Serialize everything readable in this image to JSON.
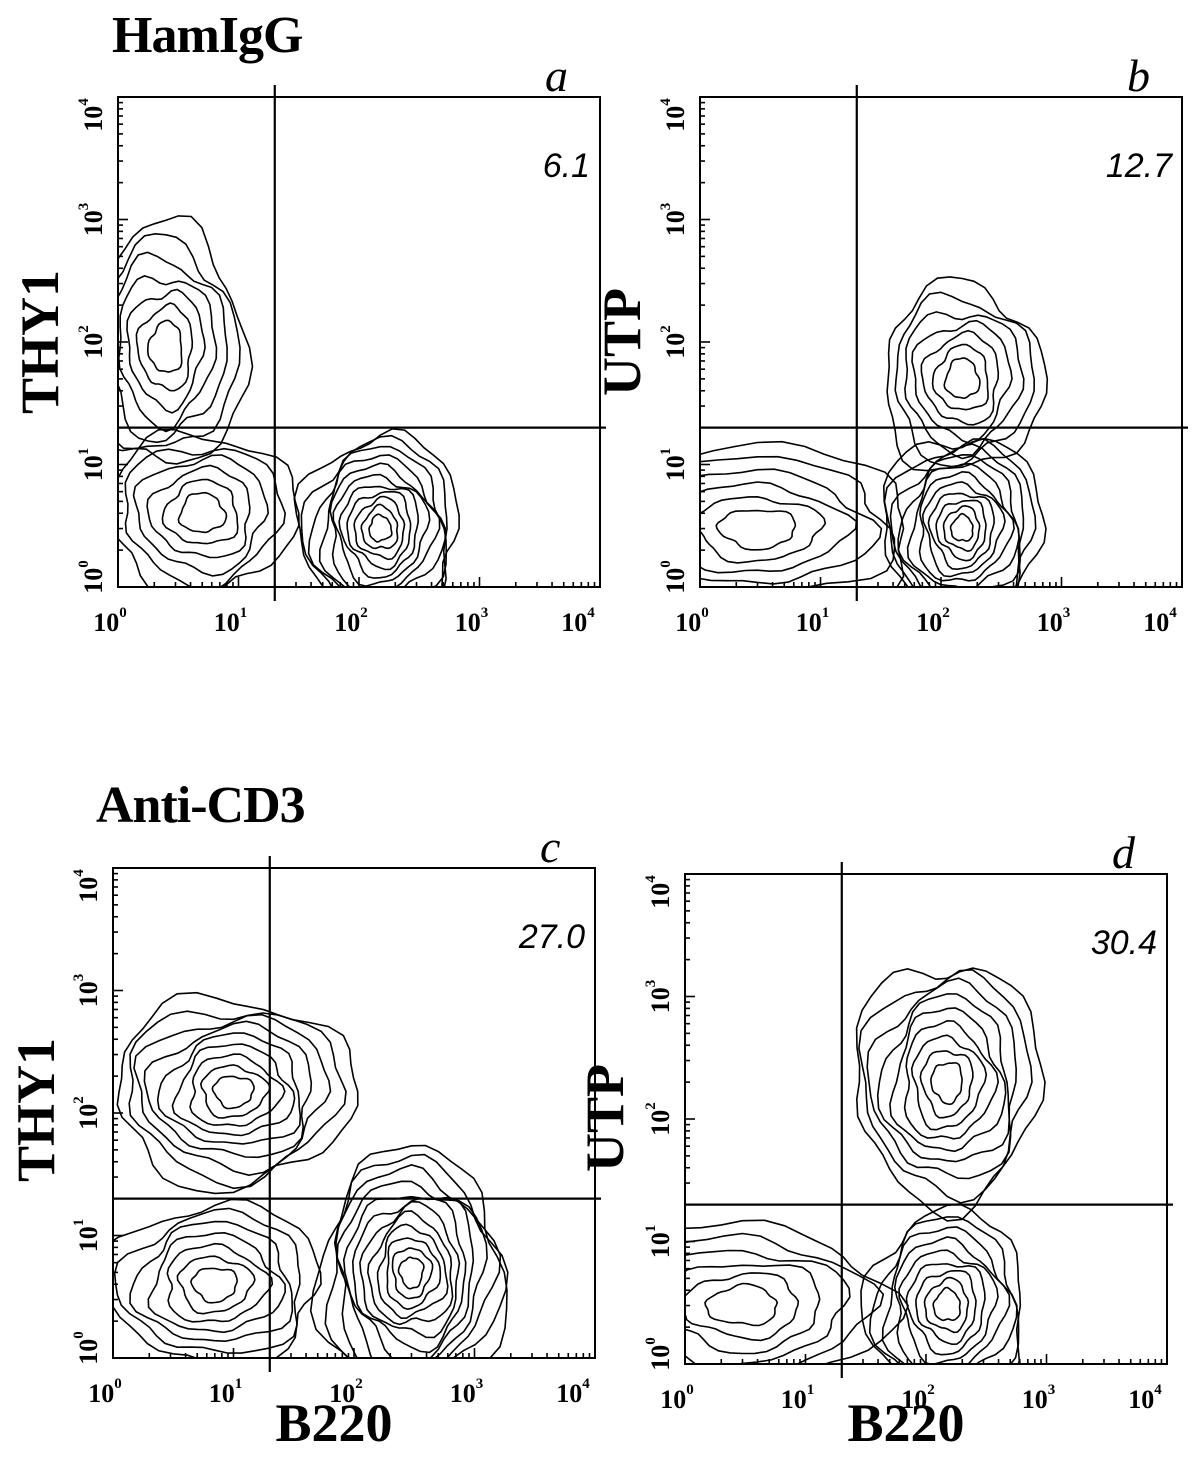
{
  "groups": [
    {
      "title": "HamIgG"
    },
    {
      "title": "Anti-CD3"
    }
  ],
  "axes": {
    "x_label": "B220",
    "thy_label": "THY1",
    "utp_label": "UTP",
    "ticks": [
      "10^0",
      "10^1",
      "10^2",
      "10^3",
      "10^4"
    ]
  },
  "chart_data": [
    {
      "type": "contour",
      "panel": "a",
      "group": "HamIgG",
      "xlabel": "B220",
      "ylabel": "THY1",
      "xscale": "log",
      "yscale": "log",
      "xlim": [
        1,
        10000
      ],
      "ylim": [
        1,
        10000
      ],
      "gate": {
        "x": 20,
        "y": 20
      },
      "annotation": "6.1",
      "populations": [
        {
          "center": [
            2.5,
            90
          ],
          "log_spread": [
            0.3,
            0.45
          ],
          "levels": 7
        },
        {
          "center": [
            5,
            4
          ],
          "log_spread": [
            0.35,
            0.3
          ],
          "levels": 6
        },
        {
          "center": [
            150,
            3
          ],
          "log_spread": [
            0.3,
            0.35
          ],
          "levels": 11
        }
      ]
    },
    {
      "type": "contour",
      "panel": "b",
      "group": "HamIgG",
      "xlabel": "B220",
      "ylabel": "UTP",
      "xscale": "log",
      "yscale": "log",
      "xlim": [
        1,
        10000
      ],
      "ylim": [
        1,
        10000
      ],
      "gate": {
        "x": 20,
        "y": 20
      },
      "annotation": "12.7",
      "populations": [
        {
          "center": [
            150,
            50
          ],
          "log_spread": [
            0.3,
            0.35
          ],
          "levels": 7
        },
        {
          "center": [
            150,
            3
          ],
          "log_spread": [
            0.3,
            0.35
          ],
          "levels": 11
        },
        {
          "center": [
            3,
            3
          ],
          "log_spread": [
            0.6,
            0.3
          ],
          "levels": 6
        }
      ]
    },
    {
      "type": "contour",
      "panel": "c",
      "group": "Anti-CD3",
      "xlabel": "B220",
      "ylabel": "THY1",
      "xscale": "log",
      "yscale": "log",
      "xlim": [
        1,
        10000
      ],
      "ylim": [
        1,
        10000
      ],
      "gate": {
        "x": 20,
        "y": 20
      },
      "annotation": "27.0",
      "populations": [
        {
          "center": [
            10,
            150
          ],
          "log_spread": [
            0.45,
            0.35
          ],
          "levels": 9
        },
        {
          "center": [
            7,
            4
          ],
          "log_spread": [
            0.4,
            0.3
          ],
          "levels": 7
        },
        {
          "center": [
            300,
            5
          ],
          "log_spread": [
            0.35,
            0.45
          ],
          "levels": 12
        }
      ]
    },
    {
      "type": "contour",
      "panel": "d",
      "group": "Anti-CD3",
      "xlabel": "B220",
      "ylabel": "UTP",
      "xscale": "log",
      "yscale": "log",
      "xlim": [
        1,
        10000
      ],
      "ylim": [
        1,
        10000
      ],
      "gate": {
        "x": 20,
        "y": 20
      },
      "annotation": "30.4",
      "populations": [
        {
          "center": [
            150,
            200
          ],
          "log_spread": [
            0.35,
            0.45
          ],
          "levels": 9
        },
        {
          "center": [
            150,
            3
          ],
          "log_spread": [
            0.3,
            0.35
          ],
          "levels": 9
        },
        {
          "center": [
            3,
            3
          ],
          "log_spread": [
            0.55,
            0.3
          ],
          "levels": 6
        }
      ]
    }
  ]
}
